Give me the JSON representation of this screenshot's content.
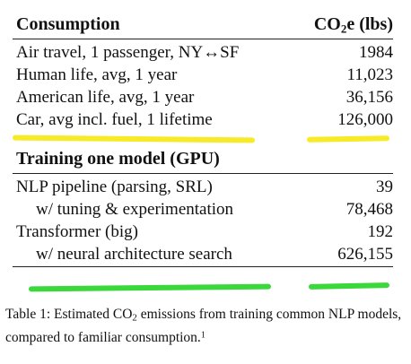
{
  "table": {
    "section1": {
      "header_label": "Consumption",
      "header_value_prefix": "CO",
      "header_value_sub": "2",
      "header_value_suffix": "e (lbs)",
      "rows": [
        {
          "label": "Air travel, 1 passenger, NY↔SF",
          "value": "1984"
        },
        {
          "label": "Human life, avg, 1 year",
          "value": "11,023"
        },
        {
          "label": "American life, avg, 1 year",
          "value": "36,156"
        },
        {
          "label": "Car, avg incl. fuel, 1 lifetime",
          "value": "126,000"
        }
      ]
    },
    "section2": {
      "header_label": "Training one model (GPU)",
      "rows": [
        {
          "label": "NLP pipeline (parsing, SRL)",
          "value": "39"
        },
        {
          "label": "w/ tuning & experimentation",
          "value": "78,468"
        },
        {
          "label": "Transformer (big)",
          "value": "192"
        },
        {
          "label": "w/ neural architecture search",
          "value": "626,155"
        }
      ]
    }
  },
  "caption": {
    "part1": "Table 1: Estimated CO",
    "sub": "2",
    "part2": " emissions from training common NLP models, compared to familiar consumption.",
    "footnote": "1"
  },
  "highlight_colors": {
    "yellow": "#f5ea1a",
    "green": "#2fd62f"
  }
}
